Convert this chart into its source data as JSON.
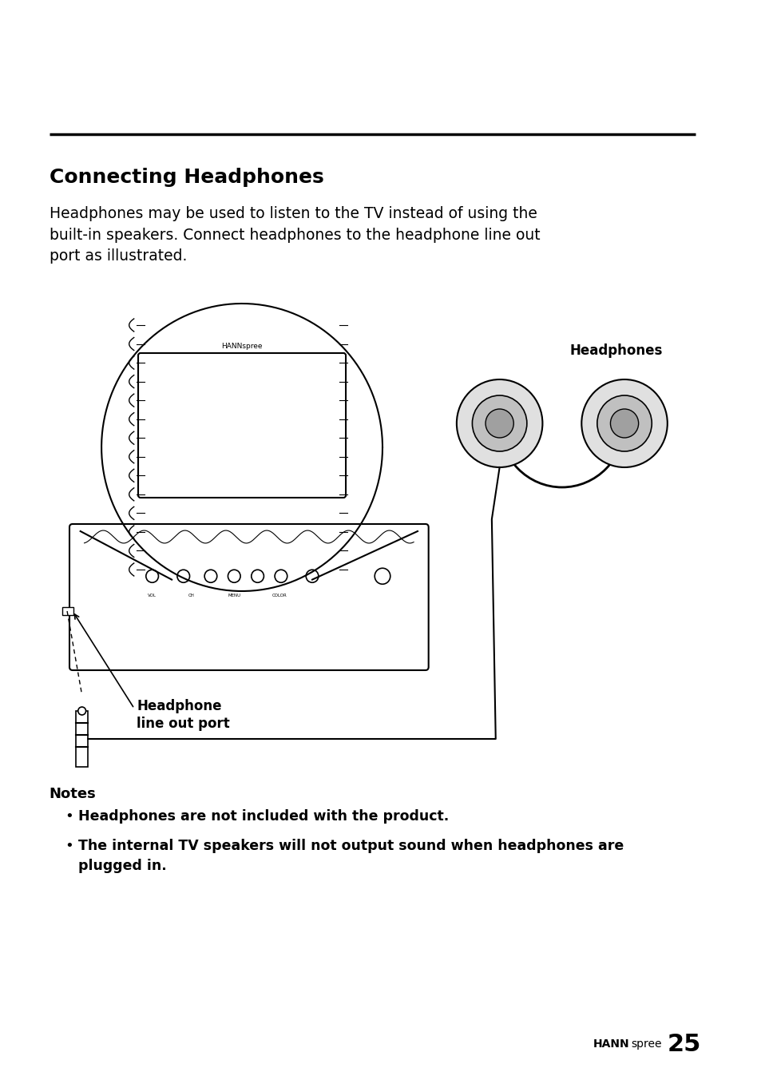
{
  "bg_color": "#ffffff",
  "title": "Connecting Headphones",
  "body_text": "Headphones may be used to listen to the TV instead of using the\nbuilt-in speakers. Connect headphones to the headphone line out\nport as illustrated.",
  "notes_header": "Notes",
  "note1": "Headphones are not included with the product.",
  "note2": "The internal TV speakers will not output sound when headphones are\nplugged in.",
  "footer_hann": "HANN",
  "footer_spree": "spree",
  "footer_page": "25",
  "line_color": "#000000",
  "text_color": "#000000"
}
